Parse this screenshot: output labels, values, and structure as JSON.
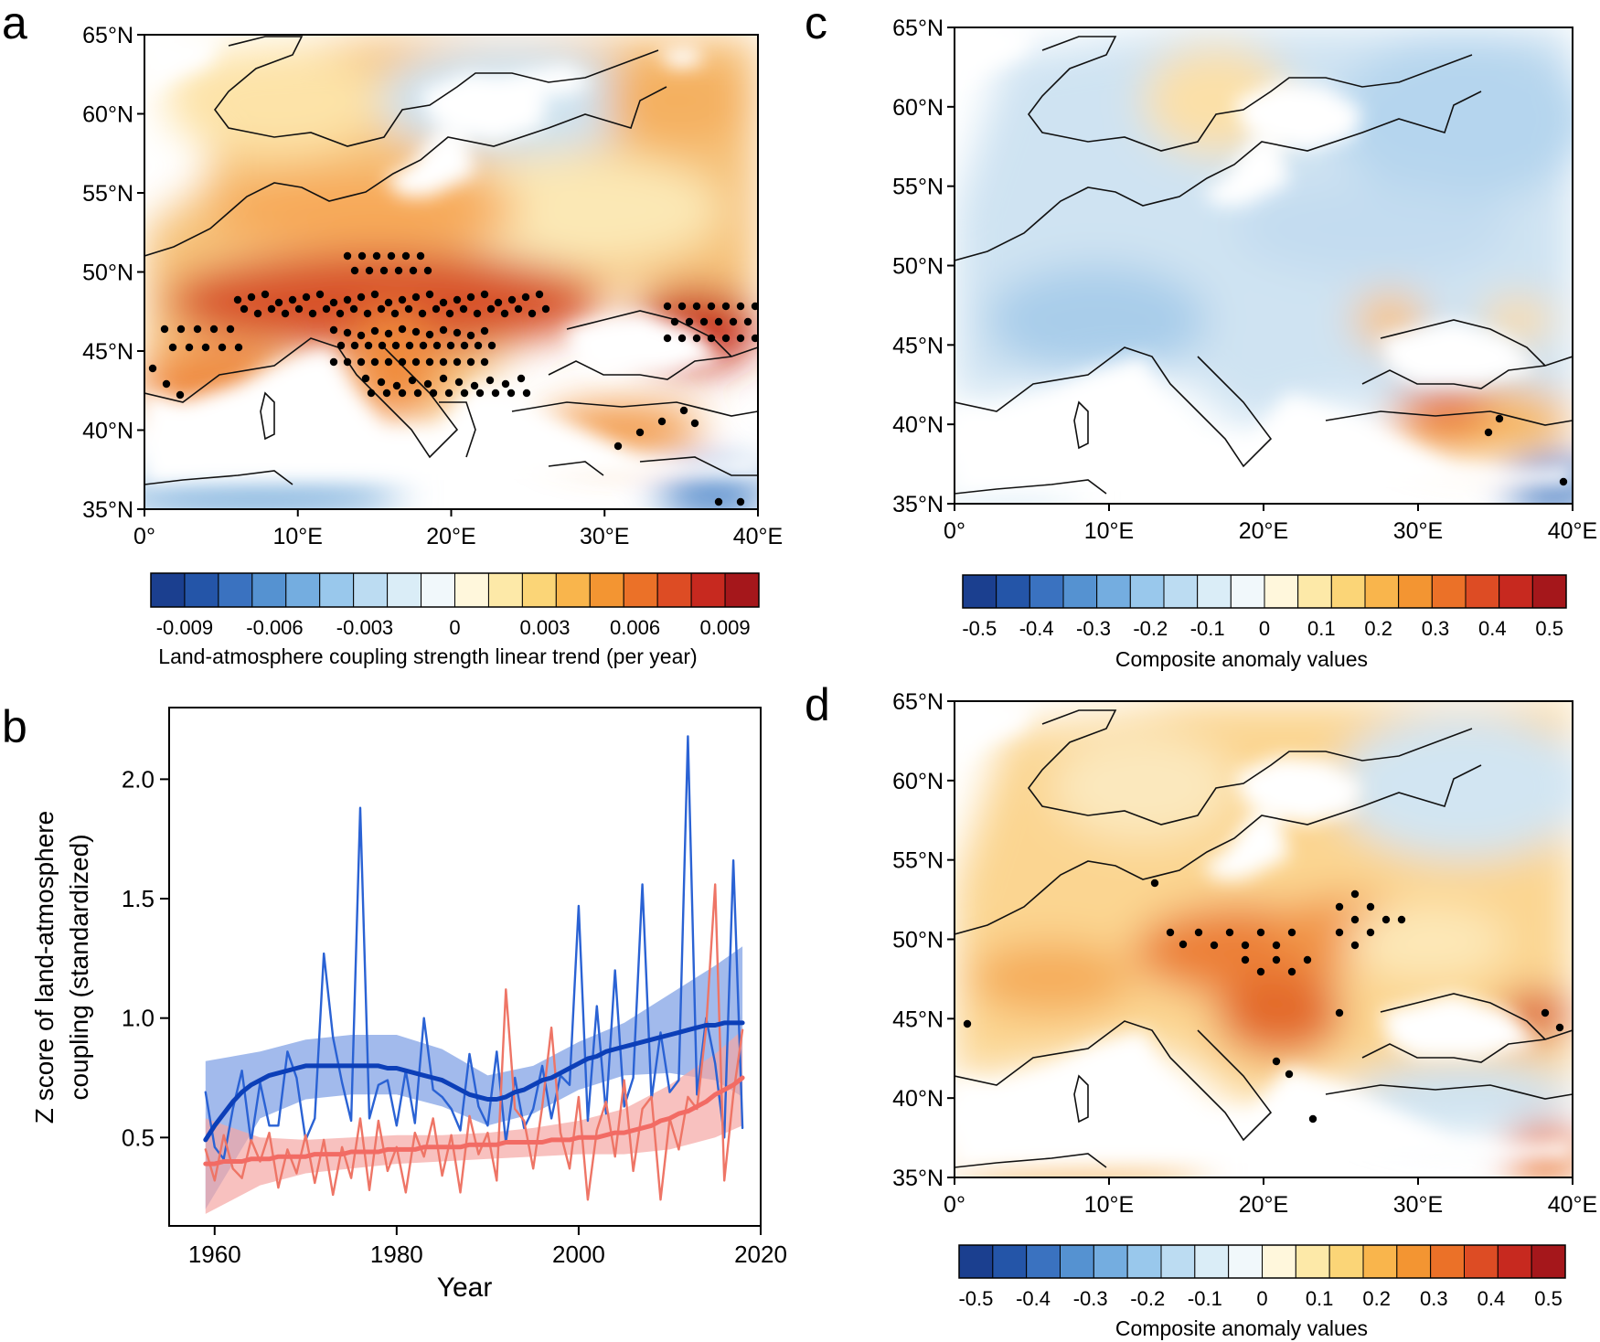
{
  "panels": {
    "a": {
      "letter": "a",
      "lat_ticks": [
        "65°N",
        "60°N",
        "55°N",
        "50°N",
        "45°N",
        "40°N",
        "35°N"
      ],
      "lon_ticks": [
        "0°",
        "10°E",
        "20°E",
        "30°E",
        "40°E"
      ],
      "colorbar_ticks": [
        "-0.009",
        "-0.006",
        "-0.003",
        "0",
        "0.003",
        "0.006",
        "0.009"
      ],
      "colorbar_label": "Land-atmosphere coupling strength linear trend (per year)"
    },
    "b": {
      "letter": "b",
      "ylabel_line1": "Z score of land-atmosphere",
      "ylabel_line2": "coupling (standardized)",
      "xlabel": "Year"
    },
    "c": {
      "letter": "c",
      "lat_ticks": [
        "65°N",
        "60°N",
        "55°N",
        "50°N",
        "45°N",
        "40°N",
        "35°N"
      ],
      "lon_ticks": [
        "0°",
        "10°E",
        "20°E",
        "30°E",
        "40°E"
      ],
      "colorbar_ticks": [
        "-0.5",
        "-0.4",
        "-0.3",
        "-0.2",
        "-0.1",
        "0",
        "0.1",
        "0.2",
        "0.3",
        "0.4",
        "0.5"
      ],
      "colorbar_label": "Composite anomaly values"
    },
    "d": {
      "letter": "d",
      "lat_ticks": [
        "65°N",
        "60°N",
        "55°N",
        "50°N",
        "45°N",
        "40°N",
        "35°N"
      ],
      "lon_ticks": [
        "0°",
        "10°E",
        "20°E",
        "30°E",
        "40°E"
      ],
      "colorbar_ticks": [
        "-0.5",
        "-0.4",
        "-0.3",
        "-0.2",
        "-0.1",
        "0",
        "0.1",
        "0.2",
        "0.3",
        "0.4",
        "0.5"
      ],
      "colorbar_label": "Composite anomaly values"
    }
  },
  "map_extent": {
    "lon": [
      0,
      40
    ],
    "lat": [
      35,
      65
    ]
  },
  "colors": {
    "diverging_palette": [
      "#1b3f8f",
      "#2455a8",
      "#3a72c0",
      "#5592d1",
      "#74ade0",
      "#99c8ec",
      "#bcdcf2",
      "#daedf7",
      "#f1f8fb",
      "#fff7dc",
      "#fde9a8",
      "#fbd577",
      "#f9b54c",
      "#f39532",
      "#eb7128",
      "#dd4c24",
      "#c7291f",
      "#a5171b"
    ],
    "blue_series": "#2a62d4",
    "blue_fit": "#0c3fb8",
    "blue_band": "#7b9de4",
    "red_series": "#ee7566",
    "red_fit": "#f26b64",
    "red_band": "#f5a7a4",
    "stipple": "#000000"
  },
  "chart_data": {
    "type": "line",
    "xlabel": "Year",
    "ylabel": "Z score of land-atmosphere coupling (standardized)",
    "xlim": [
      1955,
      2020
    ],
    "ylim": [
      0.13,
      2.3
    ],
    "x_ticks": [
      1960,
      1980,
      2000,
      2020
    ],
    "y_ticks": [
      "0.5",
      "1.0",
      "1.5",
      "2.0"
    ],
    "x": [
      1959,
      1960,
      1961,
      1962,
      1963,
      1964,
      1965,
      1966,
      1967,
      1968,
      1969,
      1970,
      1971,
      1972,
      1973,
      1974,
      1975,
      1976,
      1977,
      1978,
      1979,
      1980,
      1981,
      1982,
      1983,
      1984,
      1985,
      1986,
      1987,
      1988,
      1989,
      1990,
      1991,
      1992,
      1993,
      1994,
      1995,
      1996,
      1997,
      1998,
      1999,
      2000,
      2001,
      2002,
      2003,
      2004,
      2005,
      2006,
      2007,
      2008,
      2009,
      2010,
      2011,
      2012,
      2013,
      2014,
      2015,
      2016,
      2017,
      2018
    ],
    "series": [
      {
        "color": "#2a62d4",
        "values": [
          0.69,
          0.46,
          0.41,
          0.62,
          0.78,
          0.48,
          0.73,
          0.55,
          0.55,
          0.86,
          0.75,
          0.49,
          0.58,
          1.27,
          0.92,
          0.73,
          0.57,
          1.88,
          0.58,
          0.72,
          0.74,
          0.55,
          0.78,
          0.56,
          1.0,
          0.7,
          0.67,
          0.62,
          0.53,
          0.85,
          0.63,
          0.55,
          0.86,
          0.48,
          0.75,
          0.54,
          0.62,
          0.8,
          0.58,
          0.76,
          0.72,
          1.47,
          0.57,
          1.05,
          0.6,
          1.2,
          0.63,
          0.75,
          1.56,
          0.66,
          0.94,
          0.69,
          0.74,
          2.18,
          0.68,
          1.0,
          0.81,
          0.5,
          1.66,
          0.54
        ]
      },
      {
        "color": "#ee7566",
        "values": [
          0.45,
          0.32,
          0.51,
          0.37,
          0.33,
          0.49,
          0.4,
          0.52,
          0.29,
          0.45,
          0.35,
          0.51,
          0.31,
          0.49,
          0.26,
          0.46,
          0.33,
          0.58,
          0.28,
          0.57,
          0.36,
          0.46,
          0.27,
          0.52,
          0.42,
          0.58,
          0.34,
          0.51,
          0.27,
          0.59,
          0.43,
          0.52,
          0.32,
          1.12,
          0.62,
          0.57,
          0.37,
          0.63,
          0.96,
          0.52,
          0.37,
          0.67,
          0.24,
          0.53,
          0.65,
          0.42,
          0.74,
          0.36,
          0.62,
          0.67,
          0.24,
          0.58,
          0.45,
          0.67,
          0.62,
          0.96,
          1.56,
          0.32,
          0.68,
          0.95
        ]
      },
      {
        "color": "#0c3fb8",
        "values": [
          0.49,
          0.55,
          0.6,
          0.65,
          0.69,
          0.72,
          0.74,
          0.76,
          0.77,
          0.78,
          0.79,
          0.8,
          0.8,
          0.8,
          0.8,
          0.8,
          0.8,
          0.8,
          0.8,
          0.8,
          0.79,
          0.79,
          0.78,
          0.77,
          0.76,
          0.75,
          0.74,
          0.72,
          0.7,
          0.68,
          0.67,
          0.66,
          0.66,
          0.67,
          0.69,
          0.7,
          0.72,
          0.74,
          0.75,
          0.77,
          0.79,
          0.81,
          0.83,
          0.84,
          0.86,
          0.87,
          0.88,
          0.89,
          0.9,
          0.91,
          0.92,
          0.93,
          0.94,
          0.95,
          0.96,
          0.97,
          0.97,
          0.98,
          0.98,
          0.98
        ]
      },
      {
        "color": "#f26b64",
        "values": [
          0.39,
          0.39,
          0.4,
          0.4,
          0.4,
          0.41,
          0.41,
          0.41,
          0.42,
          0.42,
          0.42,
          0.42,
          0.43,
          0.43,
          0.43,
          0.43,
          0.44,
          0.44,
          0.44,
          0.44,
          0.45,
          0.45,
          0.45,
          0.45,
          0.46,
          0.46,
          0.46,
          0.46,
          0.46,
          0.47,
          0.47,
          0.47,
          0.47,
          0.48,
          0.48,
          0.48,
          0.48,
          0.48,
          0.49,
          0.49,
          0.49,
          0.5,
          0.5,
          0.5,
          0.51,
          0.52,
          0.52,
          0.53,
          0.54,
          0.55,
          0.57,
          0.58,
          0.6,
          0.61,
          0.63,
          0.65,
          0.68,
          0.7,
          0.72,
          0.75
        ]
      }
    ],
    "bands": [
      {
        "color": "#7b9de4",
        "x": [
          1959,
          1965,
          1970,
          1975,
          1980,
          1985,
          1990,
          1995,
          2000,
          2005,
          2010,
          2015,
          2018
        ],
        "lower": [
          0.2,
          0.58,
          0.66,
          0.68,
          0.68,
          0.63,
          0.55,
          0.6,
          0.7,
          0.76,
          0.77,
          0.74,
          0.67
        ],
        "upper": [
          0.82,
          0.86,
          0.91,
          0.93,
          0.93,
          0.87,
          0.76,
          0.8,
          0.9,
          0.98,
          1.1,
          1.22,
          1.3
        ]
      },
      {
        "color": "#f5a7a4",
        "x": [
          1959,
          1965,
          1970,
          1975,
          1980,
          1985,
          1990,
          1995,
          2000,
          2005,
          2010,
          2015,
          2018
        ],
        "lower": [
          0.18,
          0.3,
          0.35,
          0.37,
          0.39,
          0.4,
          0.41,
          0.42,
          0.43,
          0.43,
          0.45,
          0.5,
          0.55
        ],
        "upper": [
          0.58,
          0.5,
          0.49,
          0.5,
          0.51,
          0.51,
          0.52,
          0.54,
          0.57,
          0.62,
          0.72,
          0.85,
          0.95
        ]
      }
    ]
  }
}
